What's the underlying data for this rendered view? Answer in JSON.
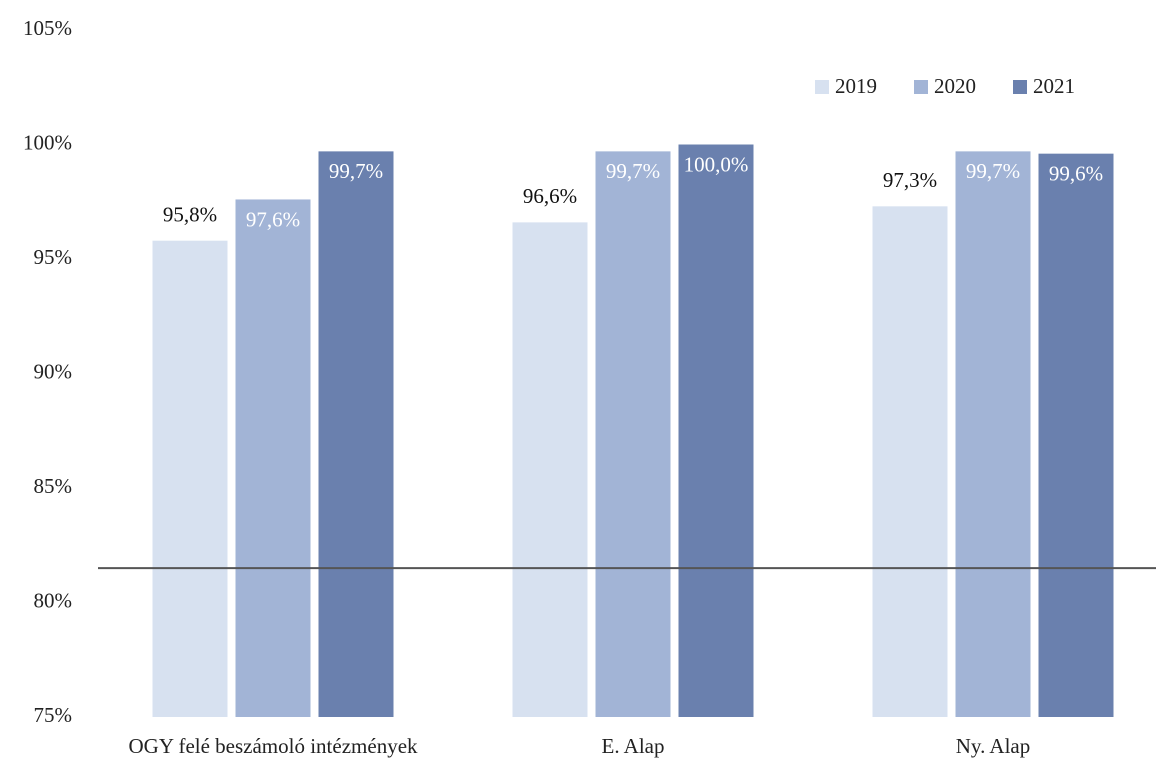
{
  "chart_data": {
    "type": "bar",
    "categories": [
      "OGY felé beszámoló intézmények",
      "E. Alap",
      "Ny. Alap"
    ],
    "series": [
      {
        "name": "2019",
        "color": "#d7e1f0",
        "values": [
          95.8,
          96.6,
          97.3
        ],
        "value_labels": [
          "95,8%",
          "96,6%",
          "97,3%"
        ]
      },
      {
        "name": "2020",
        "color": "#a2b4d6",
        "values": [
          97.6,
          99.7,
          99.7
        ],
        "value_labels": [
          "97,6%",
          "99,7%",
          "99,7%"
        ]
      },
      {
        "name": "2021",
        "color": "#6a80ae",
        "values": [
          99.7,
          100.0,
          99.6
        ],
        "value_labels": [
          "99,7%",
          "100,0%",
          "99,6%"
        ]
      }
    ],
    "ylim": [
      75,
      105
    ],
    "yticks": [
      {
        "value": 75,
        "label": "75%"
      },
      {
        "value": 80,
        "label": "80%"
      },
      {
        "value": 85,
        "label": "85%"
      },
      {
        "value": 90,
        "label": "90%"
      },
      {
        "value": 95,
        "label": "95%"
      },
      {
        "value": 100,
        "label": "100%"
      },
      {
        "value": 105,
        "label": "105%"
      }
    ],
    "hline": 81.5,
    "legend": "top-right"
  }
}
